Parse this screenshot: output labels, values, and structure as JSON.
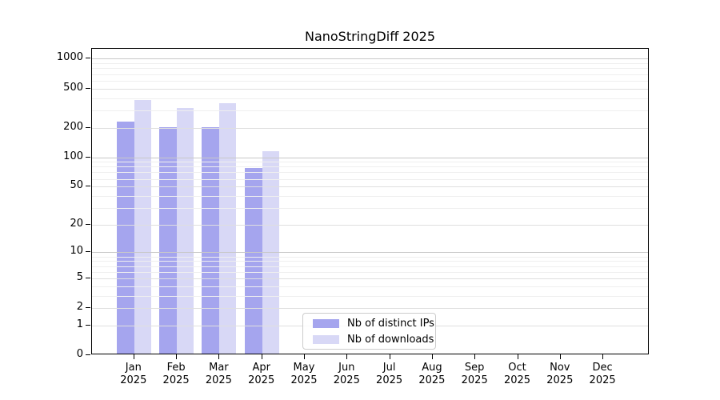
{
  "title": "NanoStringDiff 2025",
  "chart_data": {
    "type": "bar",
    "title": "NanoStringDiff 2025",
    "categories": [
      "Jan 2025",
      "Feb 2025",
      "Mar 2025",
      "Apr 2025",
      "May 2025",
      "Jun 2025",
      "Jul 2025",
      "Aug 2025",
      "Sep 2025",
      "Oct 2025",
      "Nov 2025",
      "Dec 2025"
    ],
    "series": [
      {
        "name": "Nb of distinct IPs",
        "color": "#a5a5ee",
        "values": [
          222,
          195,
          194,
          75,
          0,
          0,
          0,
          0,
          0,
          0,
          0,
          0
        ]
      },
      {
        "name": "Nb of downloads",
        "color": "#d8d8f6",
        "values": [
          370,
          305,
          340,
          110,
          0,
          0,
          0,
          0,
          0,
          0,
          0,
          0
        ]
      }
    ],
    "yscale": "log10(value+1)",
    "yticks": [
      0,
      1,
      2,
      5,
      10,
      20,
      50,
      100,
      200,
      500,
      1000
    ],
    "ylim": [
      0,
      1270
    ],
    "grid": "horizontal, minor log lines, drawn above bars",
    "legend_position": "inside-bottom-center"
  },
  "legend": {
    "items": [
      {
        "label": "Nb of distinct IPs",
        "color": "#a5a5ee"
      },
      {
        "label": "Nb of downloads",
        "color": "#d8d8f6"
      }
    ]
  },
  "colors": {
    "grid_major": "#c8c8c8",
    "grid_labeled": "#dfdfdf",
    "grid_minor": "#efefef",
    "axis": "#000000"
  }
}
